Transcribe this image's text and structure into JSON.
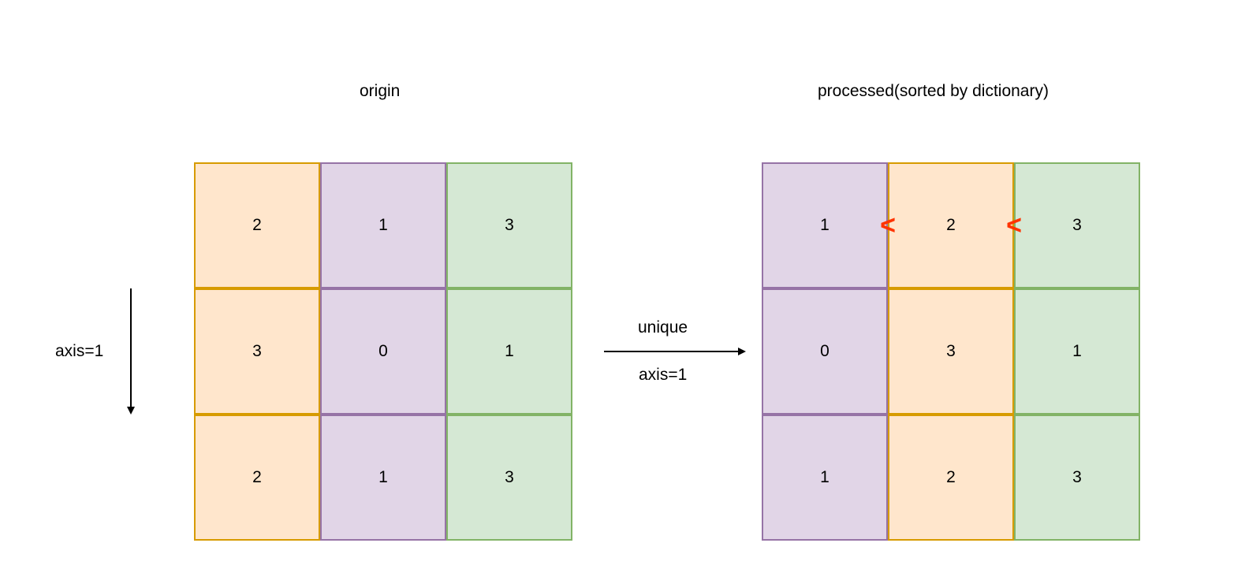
{
  "origin": {
    "title": "origin",
    "side_label": "axis=1",
    "columns": [
      {
        "color": "orange",
        "values": [
          "2",
          "3",
          "2"
        ]
      },
      {
        "color": "purple",
        "values": [
          "1",
          "0",
          "1"
        ]
      },
      {
        "color": "green",
        "values": [
          "3",
          "1",
          "3"
        ]
      }
    ]
  },
  "operation": {
    "label_top": "unique",
    "label_bottom": "axis=1"
  },
  "processed": {
    "title": "processed(sorted by dictionary)",
    "columns": [
      {
        "color": "purple",
        "values": [
          "1",
          "0",
          "1"
        ]
      },
      {
        "color": "orange",
        "values": [
          "2",
          "3",
          "2"
        ]
      },
      {
        "color": "green",
        "values": [
          "3",
          "1",
          "3"
        ]
      }
    ],
    "comparison_symbols": [
      "<",
      "<"
    ]
  },
  "colors": {
    "orange_fill": "#ffe6cc",
    "orange_stroke": "#d79b00",
    "purple_fill": "#e1d5e7",
    "purple_stroke": "#9673a6",
    "green_fill": "#d5e8d4",
    "green_stroke": "#82b366",
    "comparison": "#ff3300"
  }
}
